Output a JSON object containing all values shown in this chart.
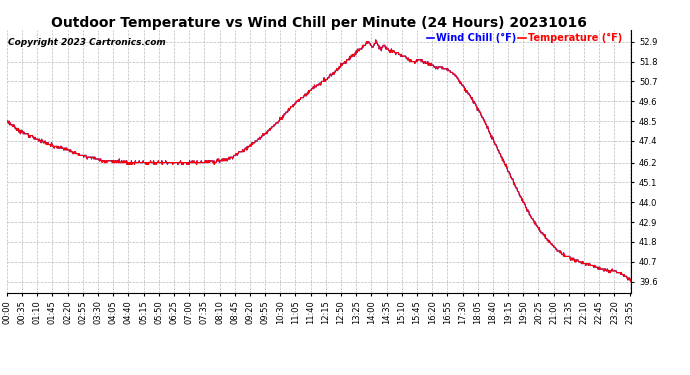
{
  "title": "Outdoor Temperature vs Wind Chill per Minute (24 Hours) 20231016",
  "copyright": "Copyright 2023 Cartronics.com",
  "legend_wind_chill": "Wind Chill (°F)",
  "legend_temperature": "Temperature (°F)",
  "wind_chill_color": "blue",
  "temperature_color": "red",
  "background_color": "#ffffff",
  "plot_bg_color": "#ffffff",
  "grid_color": "#bbbbbb",
  "yticks": [
    39.6,
    40.7,
    41.8,
    42.9,
    44.0,
    45.1,
    46.2,
    47.4,
    48.5,
    49.6,
    50.7,
    51.8,
    52.9
  ],
  "ylim": [
    39.0,
    53.55
  ],
  "total_minutes": 1440,
  "x_tick_interval": 35,
  "title_fontsize": 10,
  "tick_fontsize": 6,
  "legend_fontsize": 7,
  "copyright_fontsize": 6.5,
  "linewidth": 0.8,
  "figwidth": 6.9,
  "figheight": 3.75,
  "dpi": 100
}
